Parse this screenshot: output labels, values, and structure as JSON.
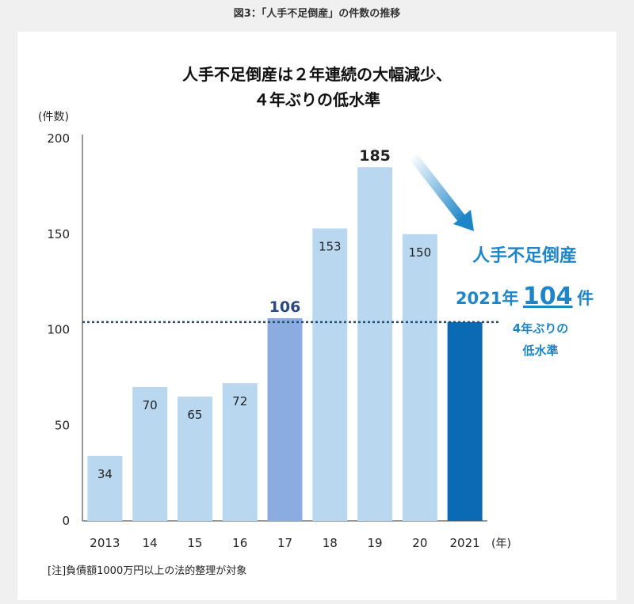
{
  "caption": "図3：「人手不足倒産」の件数の推移",
  "chart_data": {
    "type": "bar",
    "title_line1": "人手不足倒産は２年連続の大幅減少、",
    "title_line2": "４年ぶりの低水準",
    "ylabel": "(件数)",
    "xlabel": "(年)",
    "ylim": [
      0,
      200
    ],
    "yticks": [
      "0",
      "50",
      "100",
      "150",
      "200"
    ],
    "categories": [
      "2013",
      "14",
      "15",
      "16",
      "17",
      "18",
      "19",
      "20",
      "2021"
    ],
    "values": [
      34,
      70,
      65,
      72,
      106,
      153,
      185,
      150,
      104
    ],
    "value_labels": [
      "34",
      "70",
      "65",
      "72",
      "106",
      "153",
      "185",
      "150",
      ""
    ],
    "reference_line": 104,
    "colors": {
      "default": "#b9d8f0",
      "highlight_2017": "#8aace0",
      "highlight_2021": "#0a6bb4",
      "annotation": "#1e86c8",
      "label_2017": "#2c4a80"
    },
    "annotation": {
      "line1": "人手不足倒産",
      "year_text": "2021年",
      "count_value": "104",
      "count_unit": "件",
      "line3": "4年ぶりの",
      "line4": "低水準"
    }
  },
  "note": "[注]負債額1000万円以上の法的整理が対象"
}
